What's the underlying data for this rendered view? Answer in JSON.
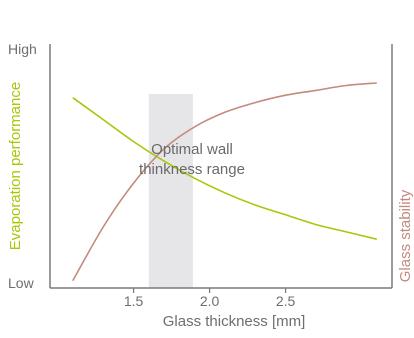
{
  "chart_data": {
    "type": "line",
    "title": "",
    "xlabel": "Glass thickness [mm]",
    "ylabel_left": "Evaporation performance",
    "ylabel_right": "Glass stability",
    "y_tick_high": "High",
    "y_tick_low": "Low",
    "x_ticks": [
      {
        "value": 1.5,
        "label": "1.5"
      },
      {
        "value": 2.0,
        "label": "2.0"
      },
      {
        "value": 2.5,
        "label": "2.5"
      }
    ],
    "xlim": [
      0.95,
      3.2
    ],
    "ylim": [
      0,
      1
    ],
    "grid": false,
    "band": {
      "x_start": 1.6,
      "x_end": 1.89,
      "label_line1": "Optimal wall",
      "label_line2": "thinkness range",
      "color": "#e6e6e8"
    },
    "series": [
      {
        "key": "evaporation",
        "color": "#a6c80a",
        "x": [
          1.1,
          1.3,
          1.5,
          1.7,
          1.9,
          2.1,
          2.3,
          2.5,
          2.7,
          2.9,
          3.1
        ],
        "y": [
          0.78,
          0.69,
          0.6,
          0.52,
          0.45,
          0.39,
          0.34,
          0.3,
          0.26,
          0.23,
          0.2
        ]
      },
      {
        "key": "stability",
        "color": "#c48a7e",
        "x": [
          1.1,
          1.3,
          1.5,
          1.7,
          1.9,
          2.1,
          2.3,
          2.5,
          2.7,
          2.9,
          3.1
        ],
        "y": [
          0.03,
          0.25,
          0.43,
          0.57,
          0.66,
          0.72,
          0.76,
          0.79,
          0.81,
          0.83,
          0.84
        ]
      }
    ],
    "colors": {
      "axis": "#7a7a7a",
      "left_label": "#a6c80a",
      "right_label": "#c48a7e",
      "text": "#6e6e6e"
    }
  }
}
